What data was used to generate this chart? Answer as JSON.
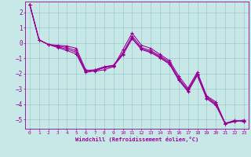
{
  "title": "",
  "xlabel": "Windchill (Refroidissement éolien,°C)",
  "xlim": [
    -0.5,
    23.5
  ],
  "ylim": [
    -5.6,
    2.7
  ],
  "yticks": [
    2,
    1,
    0,
    -1,
    -2,
    -3,
    -4,
    -5
  ],
  "xticks": [
    0,
    1,
    2,
    3,
    4,
    5,
    6,
    7,
    8,
    9,
    10,
    11,
    12,
    13,
    14,
    15,
    16,
    17,
    18,
    19,
    20,
    21,
    22,
    23
  ],
  "bg_color": "#c8e8e8",
  "line_color": "#990099",
  "grid_color": "#99cccc",
  "lines": [
    [
      2.5,
      0.2,
      -0.1,
      -0.15,
      -0.2,
      -0.35,
      -1.75,
      -1.85,
      -1.75,
      -1.55,
      -0.45,
      0.65,
      -0.15,
      -0.35,
      -0.75,
      -1.15,
      -2.15,
      -2.95,
      -1.9,
      -3.45,
      -3.85,
      -5.25,
      -5.05,
      -5.15
    ],
    [
      2.5,
      0.2,
      -0.1,
      -0.2,
      -0.3,
      -0.5,
      -1.8,
      -1.75,
      -1.55,
      -1.45,
      -0.65,
      0.45,
      -0.3,
      -0.5,
      -0.85,
      -1.25,
      -2.3,
      -3.05,
      -2.0,
      -3.5,
      -3.95,
      -5.25,
      -5.08,
      -5.12
    ],
    [
      2.5,
      0.2,
      -0.1,
      -0.25,
      -0.4,
      -0.6,
      -1.88,
      -1.78,
      -1.58,
      -1.48,
      -0.72,
      0.32,
      -0.38,
      -0.58,
      -0.92,
      -1.32,
      -2.38,
      -3.12,
      -2.08,
      -3.58,
      -4.02,
      -5.27,
      -5.11,
      -5.08
    ],
    [
      2.5,
      0.2,
      -0.1,
      -0.3,
      -0.5,
      -0.72,
      -1.93,
      -1.82,
      -1.62,
      -1.52,
      -0.78,
      0.28,
      -0.43,
      -0.63,
      -0.98,
      -1.38,
      -2.43,
      -3.18,
      -2.13,
      -3.63,
      -4.08,
      -5.28,
      -5.14,
      -5.03
    ]
  ]
}
